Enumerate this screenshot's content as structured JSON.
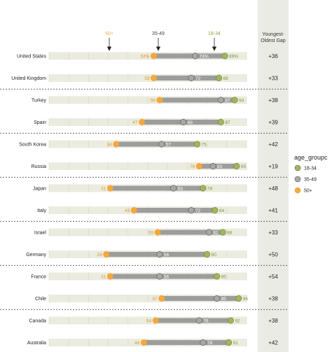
{
  "chart_data": {
    "type": "dot-range",
    "title": "",
    "group_labels": {
      "old": "50+",
      "mid": "35-49",
      "young": "18-34"
    },
    "gap_header": [
      "Youngest-",
      "Oldest Gap"
    ],
    "legend_title": "age_groupc",
    "legend_items": [
      "18-34",
      "35-49",
      "50+"
    ],
    "colors": {
      "young": "#9fb85a",
      "mid": "#a8a8a8",
      "old": "#f5a93c",
      "bar": "#9d9d9d",
      "track": "#ebebdf",
      "gap_col": "#ebebe5"
    },
    "x_range": [
      0,
      100
    ],
    "rows": [
      {
        "country": "United States",
        "old": 53,
        "mid": 74,
        "young": 89,
        "old_label": "53%",
        "mid_label": "74%",
        "young_label": "89%",
        "gap": "+36"
      },
      {
        "country": "United Kingdom",
        "old": 53,
        "mid": 72,
        "young": 86,
        "old_label": "53",
        "mid_label": "72",
        "young_label": "86",
        "gap": "+33"
      },
      {
        "country": "Turkey",
        "old": 56,
        "mid": 87,
        "young": 94,
        "old_label": "56",
        "mid_label": "87",
        "young_label": "94",
        "gap": "+38"
      },
      {
        "country": "Spain",
        "old": 47,
        "mid": 68,
        "young": 87,
        "old_label": "47",
        "mid_label": "68",
        "young_label": "87",
        "gap": "+39"
      },
      {
        "country": "South Korea",
        "old": 34,
        "mid": 57,
        "young": 75,
        "old_label": "34",
        "mid_label": "57",
        "young_label": "75",
        "gap": "+42"
      },
      {
        "country": "Russia",
        "old": 76,
        "mid": 83,
        "young": 95,
        "old_label": "76",
        "mid_label": "83",
        "young_label": "95",
        "gap": "+19"
      },
      {
        "country": "Japan",
        "old": 31,
        "mid": 63,
        "young": 78,
        "old_label": "31",
        "mid_label": "63",
        "young_label": "78",
        "gap": "+48"
      },
      {
        "country": "Italy",
        "old": 43,
        "mid": 72,
        "young": 84,
        "old_label": "43",
        "mid_label": "72",
        "young_label": "84",
        "gap": "+41"
      },
      {
        "country": "Israel",
        "old": 55,
        "mid": 81,
        "young": 88,
        "old_label": "55",
        "mid_label": "81",
        "young_label": "88",
        "gap": "+33"
      },
      {
        "country": "Germany",
        "old": 29,
        "mid": 56,
        "young": 80,
        "old_label": "29",
        "mid_label": "56",
        "young_label": "80",
        "gap": "+50"
      },
      {
        "country": "France",
        "old": 31,
        "mid": 56,
        "young": 85,
        "old_label": "31",
        "mid_label": "56",
        "young_label": "85",
        "gap": "+54"
      },
      {
        "country": "Chile",
        "old": 57,
        "mid": 85,
        "young": 96,
        "old_label": "57",
        "mid_label": "85",
        "young_label": "96",
        "gap": "+38"
      },
      {
        "country": "Canada",
        "old": 54,
        "mid": 76,
        "young": 92,
        "old_label": "54",
        "mid_label": "76",
        "young_label": "92",
        "gap": "+38"
      },
      {
        "country": "Australia",
        "old": 48,
        "mid": 78,
        "young": 91,
        "old_label": "48",
        "mid_label": "78",
        "young_label": "91",
        "gap": "+42"
      }
    ]
  }
}
